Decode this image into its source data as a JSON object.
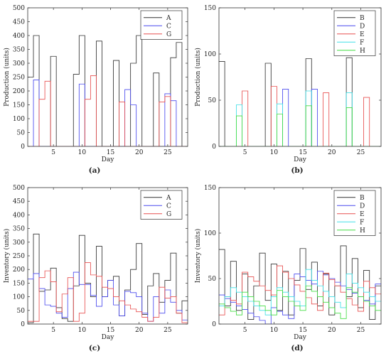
{
  "chart_data": [
    {
      "type": "line",
      "step": true,
      "caption": "(a)",
      "xlabel": "Day",
      "ylabel": "Production (units)",
      "xlim": [
        0.5,
        28.5
      ],
      "ylim": [
        0,
        500
      ],
      "xticks": [
        5,
        10,
        15,
        20,
        25
      ],
      "yticks": [
        0,
        50,
        100,
        150,
        200,
        250,
        300,
        350,
        400,
        450,
        500
      ],
      "legend_position": "top-right",
      "series": [
        {
          "name": "A",
          "color": "#333333",
          "x": [
            1,
            2,
            3,
            4,
            5,
            6,
            7,
            8,
            9,
            10,
            11,
            12,
            13,
            14,
            15,
            16,
            17,
            18,
            19,
            20,
            21,
            22,
            23,
            24,
            25,
            26,
            27,
            28
          ],
          "values": [
            250,
            400,
            0,
            0,
            325,
            0,
            0,
            0,
            260,
            400,
            0,
            0,
            380,
            0,
            0,
            310,
            0,
            0,
            300,
            400,
            0,
            0,
            265,
            0,
            0,
            320,
            375,
            0
          ]
        },
        {
          "name": "C",
          "color": "#4a4aee",
          "x": [
            1,
            2,
            3,
            4,
            5,
            6,
            7,
            8,
            9,
            10,
            11,
            12,
            13,
            14,
            15,
            16,
            17,
            18,
            19,
            20,
            21,
            22,
            23,
            24,
            25,
            26,
            27,
            28
          ],
          "values": [
            0,
            240,
            0,
            0,
            0,
            0,
            0,
            0,
            0,
            225,
            0,
            0,
            0,
            0,
            0,
            0,
            0,
            205,
            150,
            0,
            0,
            0,
            0,
            0,
            190,
            165,
            0,
            0
          ]
        },
        {
          "name": "G",
          "color": "#e85050",
          "x": [
            1,
            2,
            3,
            4,
            5,
            6,
            7,
            8,
            9,
            10,
            11,
            12,
            13,
            14,
            15,
            16,
            17,
            18,
            19,
            20,
            21,
            22,
            23,
            24,
            25,
            26,
            27,
            28
          ],
          "values": [
            0,
            0,
            170,
            235,
            0,
            0,
            0,
            0,
            0,
            0,
            170,
            255,
            0,
            0,
            0,
            0,
            160,
            0,
            0,
            0,
            0,
            0,
            0,
            160,
            180,
            0,
            0,
            0
          ]
        }
      ]
    },
    {
      "type": "line",
      "step": true,
      "caption": "(b)",
      "xlabel": "Day",
      "ylabel": "Production (units)",
      "xlim": [
        0.5,
        28.5
      ],
      "ylim": [
        0,
        150
      ],
      "xticks": [
        5,
        10,
        15,
        20,
        25
      ],
      "yticks": [
        0,
        50,
        100,
        150
      ],
      "legend_position": "top-right",
      "series": [
        {
          "name": "B",
          "color": "#333333",
          "x": [
            1,
            2,
            3,
            4,
            5,
            6,
            7,
            8,
            9,
            10,
            11,
            12,
            13,
            14,
            15,
            16,
            17,
            18,
            19,
            20,
            21,
            22,
            23,
            24,
            25,
            26,
            27,
            28
          ],
          "values": [
            92,
            0,
            0,
            0,
            0,
            0,
            0,
            0,
            90,
            0,
            0,
            0,
            0,
            0,
            0,
            95,
            0,
            0,
            0,
            0,
            0,
            0,
            96,
            0,
            0,
            0,
            0,
            0
          ]
        },
        {
          "name": "D",
          "color": "#4a4aee",
          "x": [
            1,
            2,
            3,
            4,
            5,
            6,
            7,
            8,
            9,
            10,
            11,
            12,
            13,
            14,
            15,
            16,
            17,
            18,
            19,
            20,
            21,
            22,
            23,
            24,
            25,
            26,
            27,
            28
          ],
          "values": [
            0,
            0,
            0,
            0,
            0,
            0,
            0,
            0,
            0,
            0,
            0,
            62,
            0,
            0,
            0,
            0,
            62,
            0,
            0,
            0,
            0,
            0,
            0,
            0,
            0,
            0,
            0,
            0
          ]
        },
        {
          "name": "E",
          "color": "#e85050",
          "x": [
            1,
            2,
            3,
            4,
            5,
            6,
            7,
            8,
            9,
            10,
            11,
            12,
            13,
            14,
            15,
            16,
            17,
            18,
            19,
            20,
            21,
            22,
            23,
            24,
            25,
            26,
            27,
            28
          ],
          "values": [
            0,
            0,
            0,
            0,
            60,
            0,
            0,
            0,
            0,
            65,
            0,
            0,
            0,
            0,
            0,
            0,
            0,
            0,
            58,
            0,
            0,
            0,
            0,
            0,
            0,
            53,
            0,
            0
          ]
        },
        {
          "name": "F",
          "color": "#40e0e8",
          "x": [
            1,
            2,
            3,
            4,
            5,
            6,
            7,
            8,
            9,
            10,
            11,
            12,
            13,
            14,
            15,
            16,
            17,
            18,
            19,
            20,
            21,
            22,
            23,
            24,
            25,
            26,
            27,
            28
          ],
          "values": [
            0,
            0,
            0,
            45,
            0,
            0,
            0,
            0,
            0,
            0,
            46,
            0,
            0,
            0,
            0,
            60,
            0,
            0,
            0,
            0,
            0,
            0,
            58,
            0,
            0,
            0,
            0,
            0
          ]
        },
        {
          "name": "H",
          "color": "#44dd44",
          "x": [
            1,
            2,
            3,
            4,
            5,
            6,
            7,
            8,
            9,
            10,
            11,
            12,
            13,
            14,
            15,
            16,
            17,
            18,
            19,
            20,
            21,
            22,
            23,
            24,
            25,
            26,
            27,
            28
          ],
          "values": [
            0,
            0,
            0,
            33,
            0,
            0,
            0,
            0,
            0,
            0,
            35,
            0,
            0,
            0,
            0,
            44,
            0,
            0,
            0,
            0,
            0,
            0,
            42,
            0,
            0,
            0,
            0,
            0
          ]
        }
      ]
    },
    {
      "type": "line",
      "step": true,
      "caption": "(c)",
      "xlabel": "Day",
      "ylabel": "Inventory (units)",
      "xlim": [
        0.5,
        28.5
      ],
      "ylim": [
        0,
        500
      ],
      "xticks": [
        5,
        10,
        15,
        20,
        25
      ],
      "yticks": [
        0,
        50,
        100,
        150,
        200,
        250,
        300,
        350,
        400,
        450,
        500
      ],
      "legend_position": "top-right",
      "series": [
        {
          "name": "A",
          "color": "#333333",
          "x": [
            1,
            2,
            3,
            4,
            5,
            6,
            7,
            8,
            9,
            10,
            11,
            12,
            13,
            14,
            15,
            16,
            17,
            18,
            19,
            20,
            21,
            22,
            23,
            24,
            25,
            26,
            27,
            28
          ],
          "values": [
            5,
            330,
            120,
            125,
            205,
            60,
            20,
            10,
            140,
            325,
            150,
            100,
            285,
            100,
            160,
            175,
            30,
            125,
            200,
            295,
            35,
            140,
            185,
            80,
            160,
            260,
            40,
            85
          ]
        },
        {
          "name": "C",
          "color": "#4a4aee",
          "x": [
            1,
            2,
            3,
            4,
            5,
            6,
            7,
            8,
            9,
            10,
            11,
            12,
            13,
            14,
            15,
            16,
            17,
            18,
            19,
            20,
            21,
            22,
            23,
            24,
            25,
            26,
            27,
            28
          ],
          "values": [
            165,
            185,
            130,
            70,
            65,
            40,
            25,
            130,
            190,
            145,
            145,
            105,
            65,
            100,
            160,
            70,
            30,
            120,
            115,
            100,
            40,
            10,
            100,
            40,
            125,
            80,
            50,
            15
          ]
        },
        {
          "name": "G",
          "color": "#e85050",
          "x": [
            1,
            2,
            3,
            4,
            5,
            6,
            7,
            8,
            9,
            10,
            11,
            12,
            13,
            14,
            15,
            16,
            17,
            18,
            19,
            20,
            21,
            22,
            23,
            24,
            25,
            26,
            27,
            28
          ],
          "values": [
            10,
            10,
            170,
            195,
            155,
            45,
            110,
            170,
            10,
            40,
            225,
            180,
            175,
            135,
            130,
            100,
            85,
            70,
            55,
            45,
            25,
            10,
            25,
            135,
            95,
            100,
            40,
            5
          ]
        }
      ]
    },
    {
      "type": "line",
      "step": true,
      "caption": "(d)",
      "xlabel": "Day",
      "ylabel": "Inventory (units)",
      "xlim": [
        0.5,
        28.5
      ],
      "ylim": [
        0,
        150
      ],
      "xticks": [
        5,
        10,
        15,
        20,
        25
      ],
      "yticks": [
        0,
        50,
        100,
        150
      ],
      "legend_position": "top-right",
      "series": [
        {
          "name": "B",
          "color": "#333333",
          "x": [
            1,
            2,
            3,
            4,
            5,
            6,
            7,
            8,
            9,
            10,
            11,
            12,
            13,
            14,
            15,
            16,
            17,
            18,
            19,
            20,
            21,
            22,
            23,
            24,
            25,
            26,
            27,
            28
          ],
          "values": [
            82,
            20,
            69,
            15,
            55,
            5,
            42,
            78,
            26,
            66,
            15,
            58,
            10,
            48,
            83,
            38,
            68,
            20,
            55,
            10,
            42,
            86,
            30,
            72,
            18,
            59,
            5,
            42
          ]
        },
        {
          "name": "D",
          "color": "#4a4aee",
          "x": [
            1,
            2,
            3,
            4,
            5,
            6,
            7,
            8,
            9,
            10,
            11,
            12,
            13,
            14,
            15,
            16,
            17,
            18,
            19,
            20,
            21,
            22,
            23,
            24,
            25,
            26,
            27,
            28
          ],
          "values": [
            32,
            28,
            24,
            20,
            16,
            12,
            8,
            4,
            0,
            18,
            14,
            10,
            6,
            55,
            52,
            48,
            44,
            58,
            54,
            50,
            46,
            42,
            38,
            34,
            30,
            26,
            22,
            44
          ]
        },
        {
          "name": "E",
          "color": "#e85050",
          "x": [
            1,
            2,
            3,
            4,
            5,
            6,
            7,
            8,
            9,
            10,
            11,
            12,
            13,
            14,
            15,
            16,
            17,
            18,
            19,
            20,
            21,
            22,
            23,
            24,
            25,
            26,
            27,
            28
          ],
          "values": [
            10,
            30,
            26,
            22,
            57,
            52,
            47,
            42,
            37,
            32,
            64,
            57,
            50,
            43,
            36,
            29,
            22,
            15,
            56,
            49,
            42,
            35,
            28,
            21,
            14,
            47,
            40,
            33
          ]
        },
        {
          "name": "F",
          "color": "#40e0e8",
          "x": [
            1,
            2,
            3,
            4,
            5,
            6,
            7,
            8,
            9,
            10,
            11,
            12,
            13,
            14,
            15,
            16,
            17,
            18,
            19,
            20,
            21,
            22,
            23,
            24,
            25,
            26,
            27,
            28
          ],
          "values": [
            20,
            30,
            40,
            35,
            30,
            25,
            20,
            15,
            10,
            30,
            40,
            35,
            30,
            25,
            20,
            60,
            48,
            42,
            36,
            30,
            24,
            18,
            55,
            45,
            40,
            35,
            30,
            25
          ]
        },
        {
          "name": "H",
          "color": "#44dd44",
          "x": [
            1,
            2,
            3,
            4,
            5,
            6,
            7,
            8,
            9,
            10,
            11,
            12,
            13,
            14,
            15,
            16,
            17,
            18,
            19,
            20,
            21,
            22,
            23,
            24,
            25,
            26,
            27,
            28
          ],
          "values": [
            22,
            18,
            14,
            10,
            35,
            30,
            25,
            20,
            15,
            10,
            37,
            30,
            25,
            20,
            15,
            42,
            36,
            30,
            24,
            18,
            12,
            6,
            40,
            35,
            30,
            25,
            20,
            15
          ]
        }
      ]
    }
  ]
}
